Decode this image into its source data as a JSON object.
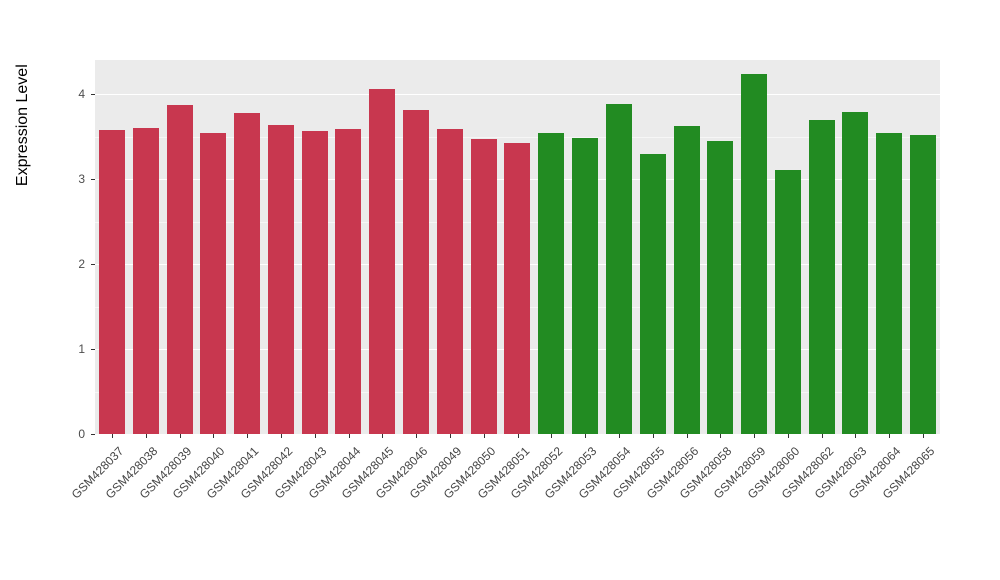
{
  "chart_data": {
    "type": "bar",
    "title": "",
    "xlabel": "",
    "ylabel": "Expression Level",
    "ylim": [
      0,
      4.4
    ],
    "yticks": [
      0,
      1,
      2,
      3,
      4
    ],
    "minor_ticks": [
      0.5,
      1.5,
      2.5,
      3.5
    ],
    "grid": "major and minor horizontal white lines on gray panel",
    "legend_position": "none",
    "panel_background": "#EBEBEB",
    "grid_color": "#FFFFFF",
    "categories": [
      "GSM428037",
      "GSM428038",
      "GSM428039",
      "GSM428040",
      "GSM428041",
      "GSM428042",
      "GSM428043",
      "GSM428044",
      "GSM428045",
      "GSM428046",
      "GSM428049",
      "GSM428050",
      "GSM428051",
      "GSM428052",
      "GSM428053",
      "GSM428054",
      "GSM428055",
      "GSM428056",
      "GSM428058",
      "GSM428059",
      "GSM428060",
      "GSM428062",
      "GSM428063",
      "GSM428064",
      "GSM428065"
    ],
    "values": [
      3.58,
      3.6,
      3.87,
      3.54,
      3.78,
      3.64,
      3.57,
      3.59,
      4.06,
      3.81,
      3.59,
      3.47,
      3.42,
      3.54,
      3.48,
      3.88,
      3.3,
      3.62,
      3.45,
      4.24,
      3.1,
      3.69,
      3.79,
      3.54,
      3.52
    ],
    "groups": [
      "crimson",
      "crimson",
      "crimson",
      "crimson",
      "crimson",
      "crimson",
      "crimson",
      "crimson",
      "crimson",
      "crimson",
      "crimson",
      "crimson",
      "crimson",
      "green",
      "green",
      "green",
      "green",
      "green",
      "green",
      "green",
      "green",
      "green",
      "green",
      "green",
      "green"
    ],
    "group_colors": {
      "crimson": "#C8374F",
      "green": "#228B22"
    }
  }
}
